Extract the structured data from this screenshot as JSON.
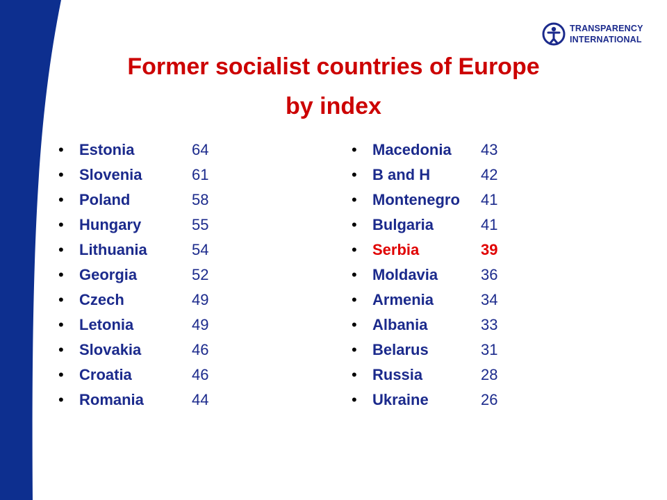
{
  "colors": {
    "brand_blue": "#0d2f8f",
    "title_red": "#cc0000",
    "text_navy": "#1b2a8c",
    "highlight_red": "#e00000"
  },
  "logo": {
    "line1": "TRANSPARENCY",
    "line2": "INTERNATIONAL",
    "icon": "transparency-international-logo-icon"
  },
  "title": {
    "line1": "Former socialist countries of Europe",
    "line2": "by index"
  },
  "left_column": [
    {
      "bullet": "•",
      "country": "Estonia",
      "score": "64"
    },
    {
      "bullet": "•",
      "country": "Slovenia",
      "score": "61"
    },
    {
      "bullet": "•",
      "country": "Poland",
      "score": "58"
    },
    {
      "bullet": "•",
      "country": "Hungary",
      "score": "55"
    },
    {
      "bullet": "•",
      "country": "Lithuania",
      "score": "54"
    },
    {
      "bullet": "•",
      "country": "Georgia",
      "score": "52"
    },
    {
      "bullet": "•",
      "country": "Czech",
      "score": "49"
    },
    {
      "bullet": "•",
      "country": "Letonia",
      "score": "49"
    },
    {
      "bullet": "•",
      "country": "Slovakia",
      "score": "46"
    },
    {
      "bullet": "•",
      "country": "Croatia",
      "score": "46"
    },
    {
      "bullet": "•",
      "country": "Romania",
      "score": "44"
    }
  ],
  "right_column": [
    {
      "bullet": "•",
      "country": "Macedonia",
      "score": "43"
    },
    {
      "bullet": "•",
      "country": "B and H",
      "score": "42"
    },
    {
      "bullet": "•",
      "country": "Montenegro",
      "score": "41"
    },
    {
      "bullet": "•",
      "country": "Bulgaria",
      "score": "41"
    },
    {
      "bullet": "•",
      "country": "Serbia",
      "score": "39",
      "highlight": true
    },
    {
      "bullet": "•",
      "country": "Moldavia",
      "score": "36"
    },
    {
      "bullet": "•",
      "country": "Armenia",
      "score": "34"
    },
    {
      "bullet": "•",
      "country": "Albania",
      "score": "33"
    },
    {
      "bullet": "•",
      "country": "Belarus",
      "score": "31"
    },
    {
      "bullet": "•",
      "country": "Russia",
      "score": "28"
    },
    {
      "bullet": "•",
      "country": "Ukraine",
      "score": "26"
    }
  ]
}
